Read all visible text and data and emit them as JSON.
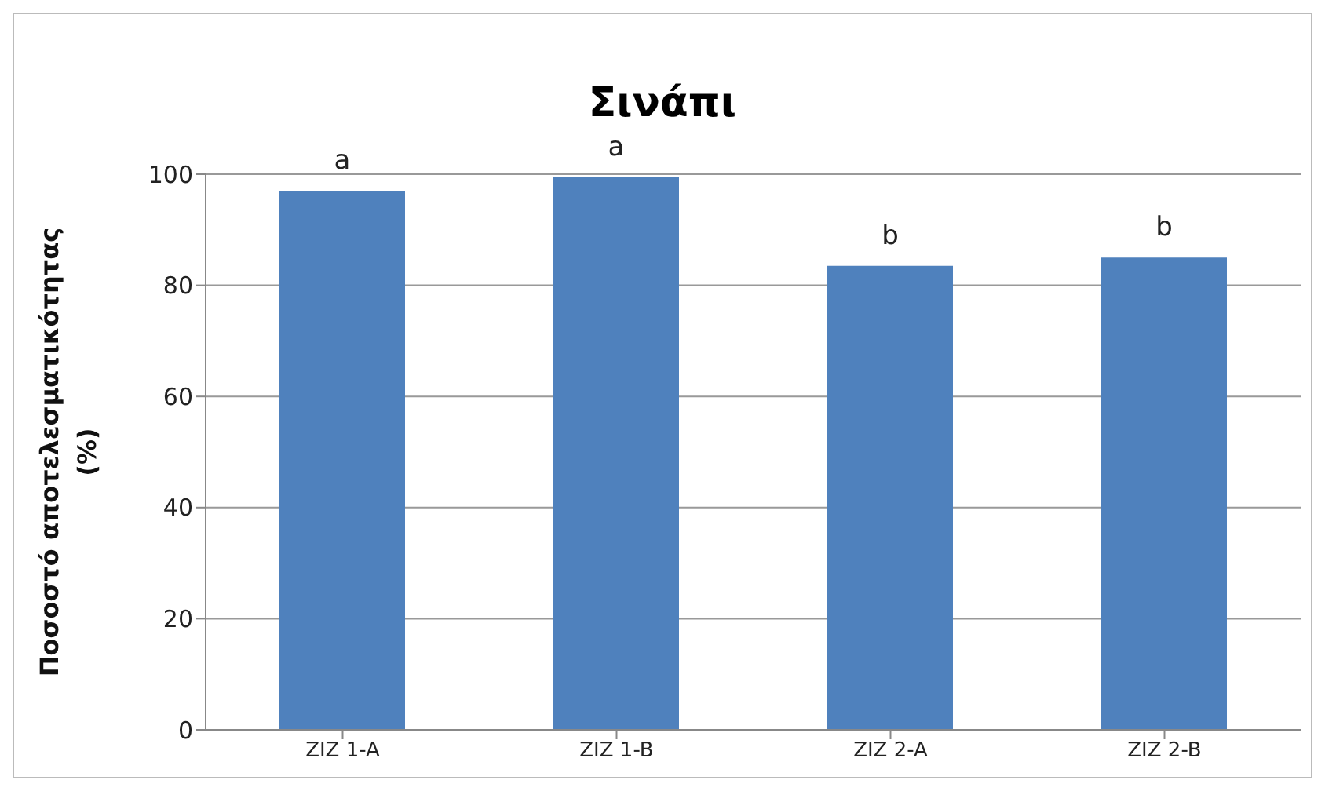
{
  "chart_data": {
    "type": "bar",
    "title": "Σινάπι",
    "ylabel": "Ποσοστό αποτελεσματικότητας (%)",
    "categories": [
      "ZIZ 1-A",
      "ZIZ 1-B",
      "ZIZ 2-A",
      "ZIZ 2-B"
    ],
    "values": [
      97,
      99.5,
      83.5,
      85
    ],
    "color": "#4f81bd",
    "value_labels": [
      "a",
      "a",
      "b",
      "b"
    ],
    "ylim": [
      0,
      100
    ],
    "yticks": [
      0,
      20,
      40,
      60,
      80,
      100
    ],
    "grid": "y",
    "legend": false
  }
}
